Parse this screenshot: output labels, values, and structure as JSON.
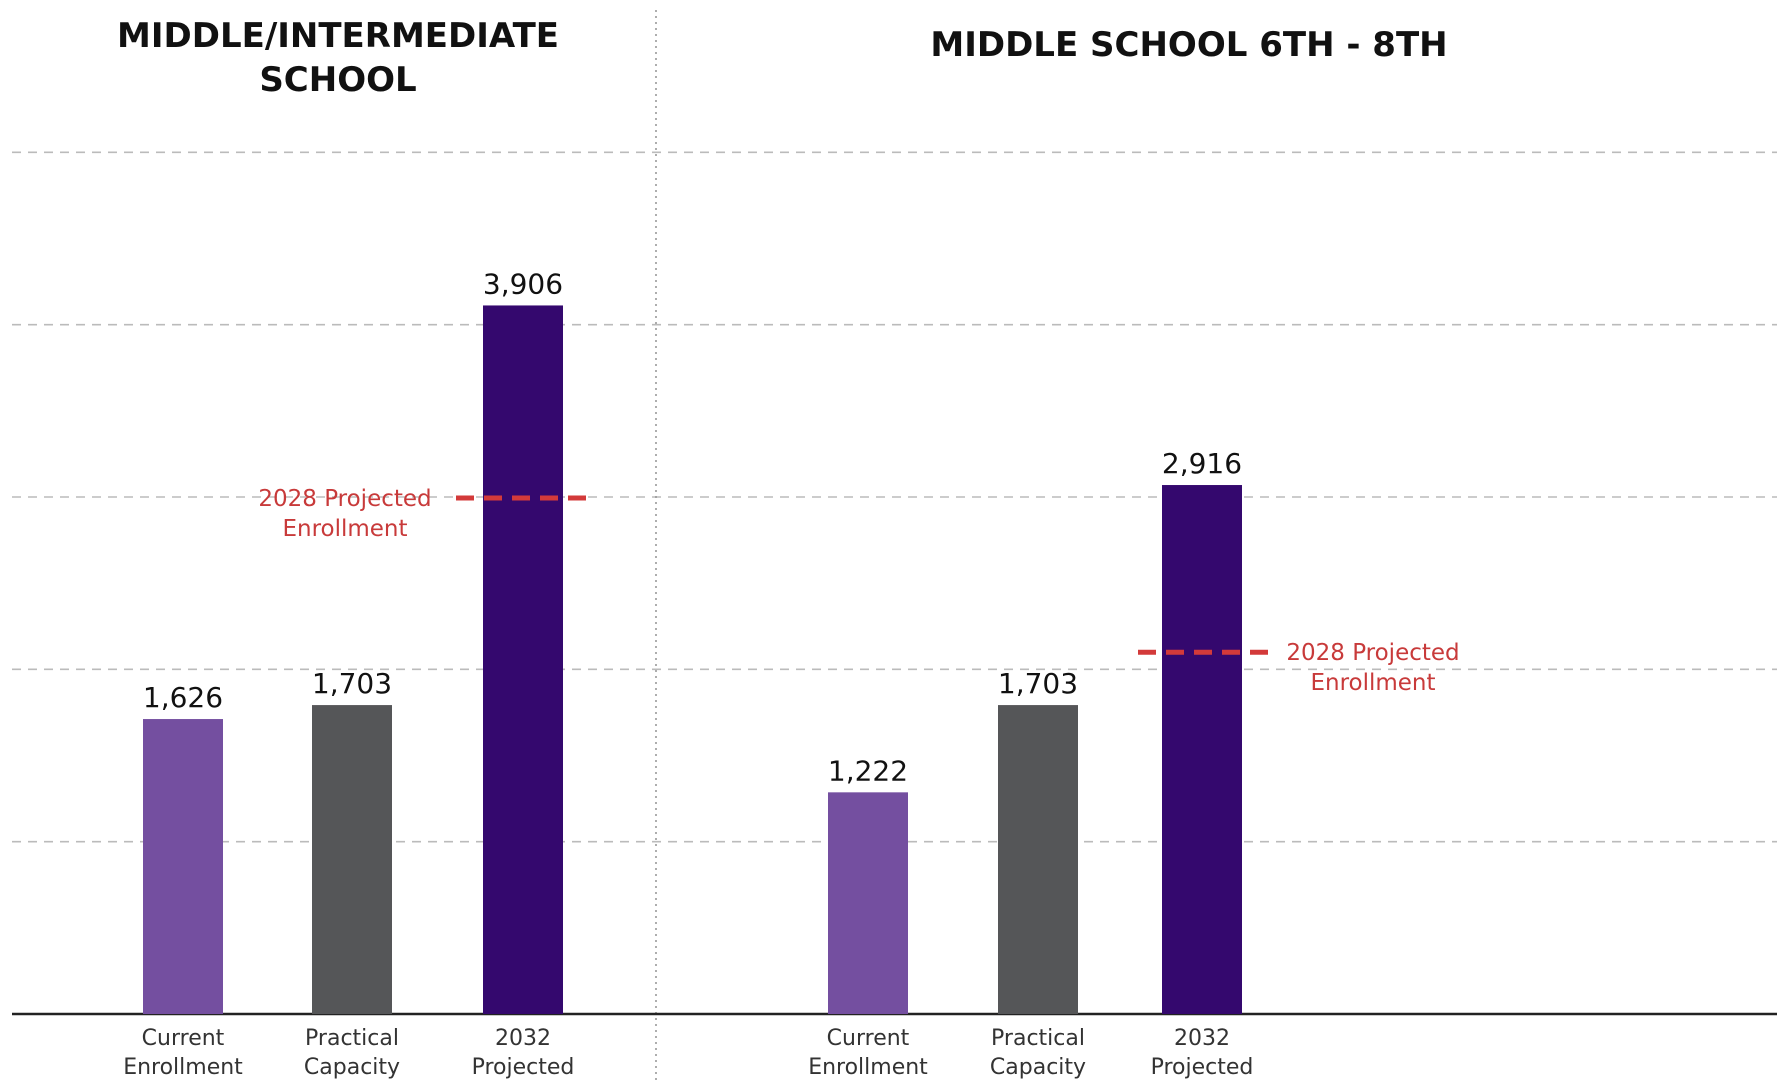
{
  "colors": {
    "current": "#744fa0",
    "capacity": "#555658",
    "projected": "#34086e",
    "projection_line": "#d33a3a",
    "gridline": "#bbbbbb",
    "axis": "#222222"
  },
  "chart_data": [
    {
      "type": "bar",
      "title_lines": [
        "MIDDLE/INTERMEDIATE",
        "SCHOOL"
      ],
      "categories": [
        [
          "Current",
          "Enrollment"
        ],
        [
          "Practical",
          "Capacity"
        ],
        [
          "2032",
          "Projected"
        ]
      ],
      "values": [
        1626,
        1703,
        3906
      ],
      "value_labels": [
        "1,626",
        "1,703",
        "3,906"
      ],
      "ylim": [
        0,
        5250
      ],
      "grid": true,
      "projection": {
        "label_lines": [
          "2028 Projected",
          "Enrollment"
        ],
        "value": 2850,
        "label_side": "left"
      }
    },
    {
      "type": "bar",
      "title_lines": [
        "MIDDLE SCHOOL 6TH - 8TH"
      ],
      "categories": [
        [
          "Current",
          "Enrollment"
        ],
        [
          "Practical",
          "Capacity"
        ],
        [
          "2032",
          "Projected"
        ]
      ],
      "values": [
        1222,
        1703,
        2916
      ],
      "value_labels": [
        "1,222",
        "1,703",
        "2,916"
      ],
      "ylim": [
        0,
        5250
      ],
      "grid": true,
      "projection": {
        "label_lines": [
          "2028 Projected",
          "Enrollment"
        ],
        "value": 2000,
        "label_side": "right"
      }
    }
  ]
}
